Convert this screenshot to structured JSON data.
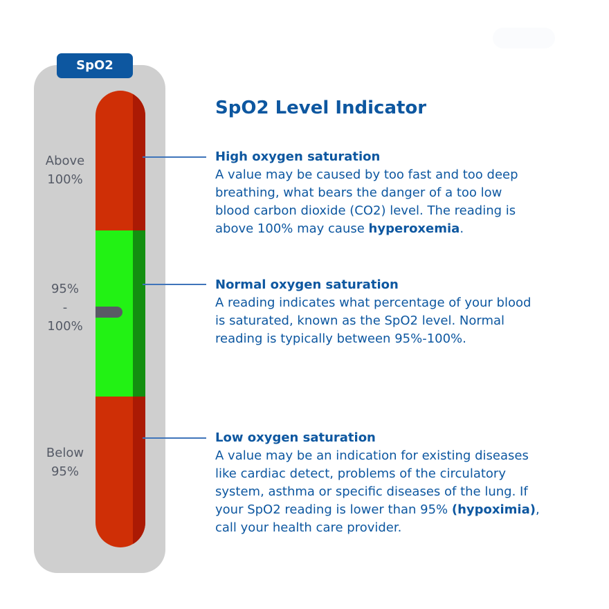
{
  "badge": "SpO2",
  "title": "SpO2 Level Indicator",
  "colors": {
    "brand_blue": "#0d57a0",
    "danger_red": "#cf2f06",
    "normal_green": "#22f214",
    "panel_gray": "#cfcfcf",
    "label_gray": "#555a66"
  },
  "scale_labels": {
    "high": [
      "Above",
      "100%"
    ],
    "normal": [
      "95%",
      "-",
      "100%"
    ],
    "low": [
      "Below",
      "95%"
    ]
  },
  "sections": {
    "high": {
      "heading": "High oxygen saturation",
      "lines": [
        "A value may be caused by too fast and too deep",
        "breathing, what bears the danger of a too low",
        "blood carbon dioxide (CO2) level. The reading is"
      ],
      "last_line_prefix": "above 100% may cause ",
      "emphasis": "hyperoxemia",
      "last_line_suffix": "."
    },
    "normal": {
      "heading": "Normal oxygen saturation",
      "lines": [
        "A reading indicates what percentage of your blood",
        "is saturated, known as the SpO2 level. Normal",
        "reading is typically between 95%-100%."
      ]
    },
    "low": {
      "heading": "Low oxygen saturation",
      "lines": [
        "A value may be an indication for existing diseases",
        "like cardiac detect, problems of the circulatory",
        "system, asthma or specific diseases of the lung. If"
      ],
      "line4_prefix": "your SpO2 reading is lower than 95% ",
      "emphasis": "(hypoximia)",
      "line4_suffix": ",",
      "line5": "call your health care provider."
    }
  }
}
